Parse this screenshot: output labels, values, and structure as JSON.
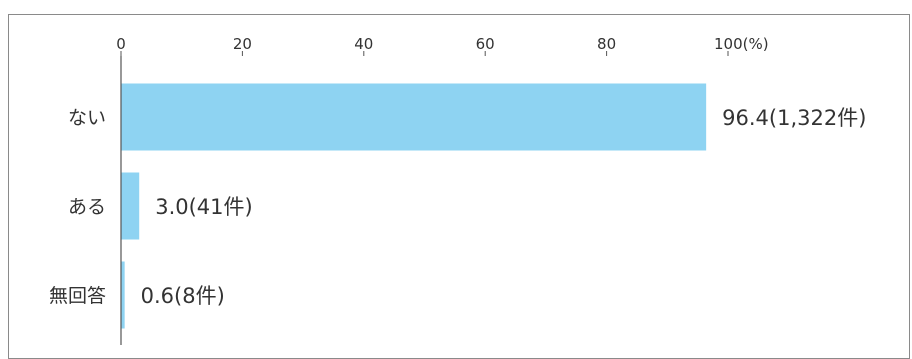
{
  "chart_data": {
    "type": "bar",
    "orientation": "horizontal",
    "categories": [
      "ない",
      "ある",
      "無回答"
    ],
    "values": [
      96.4,
      3.0,
      0.6
    ],
    "data_labels": [
      "96.4(1,322件)",
      "3.0(41件)",
      "0.6(8件)"
    ],
    "xlim": [
      0,
      100
    ],
    "x_ticks": [
      0,
      20,
      40,
      60,
      80,
      100
    ],
    "x_tick_labels": [
      "0",
      "20",
      "40",
      "60",
      "80",
      "100(%)"
    ],
    "x_axis_position": "top",
    "grid": false,
    "bar_color": "#8ed3f2",
    "axis_color": "#555555"
  }
}
